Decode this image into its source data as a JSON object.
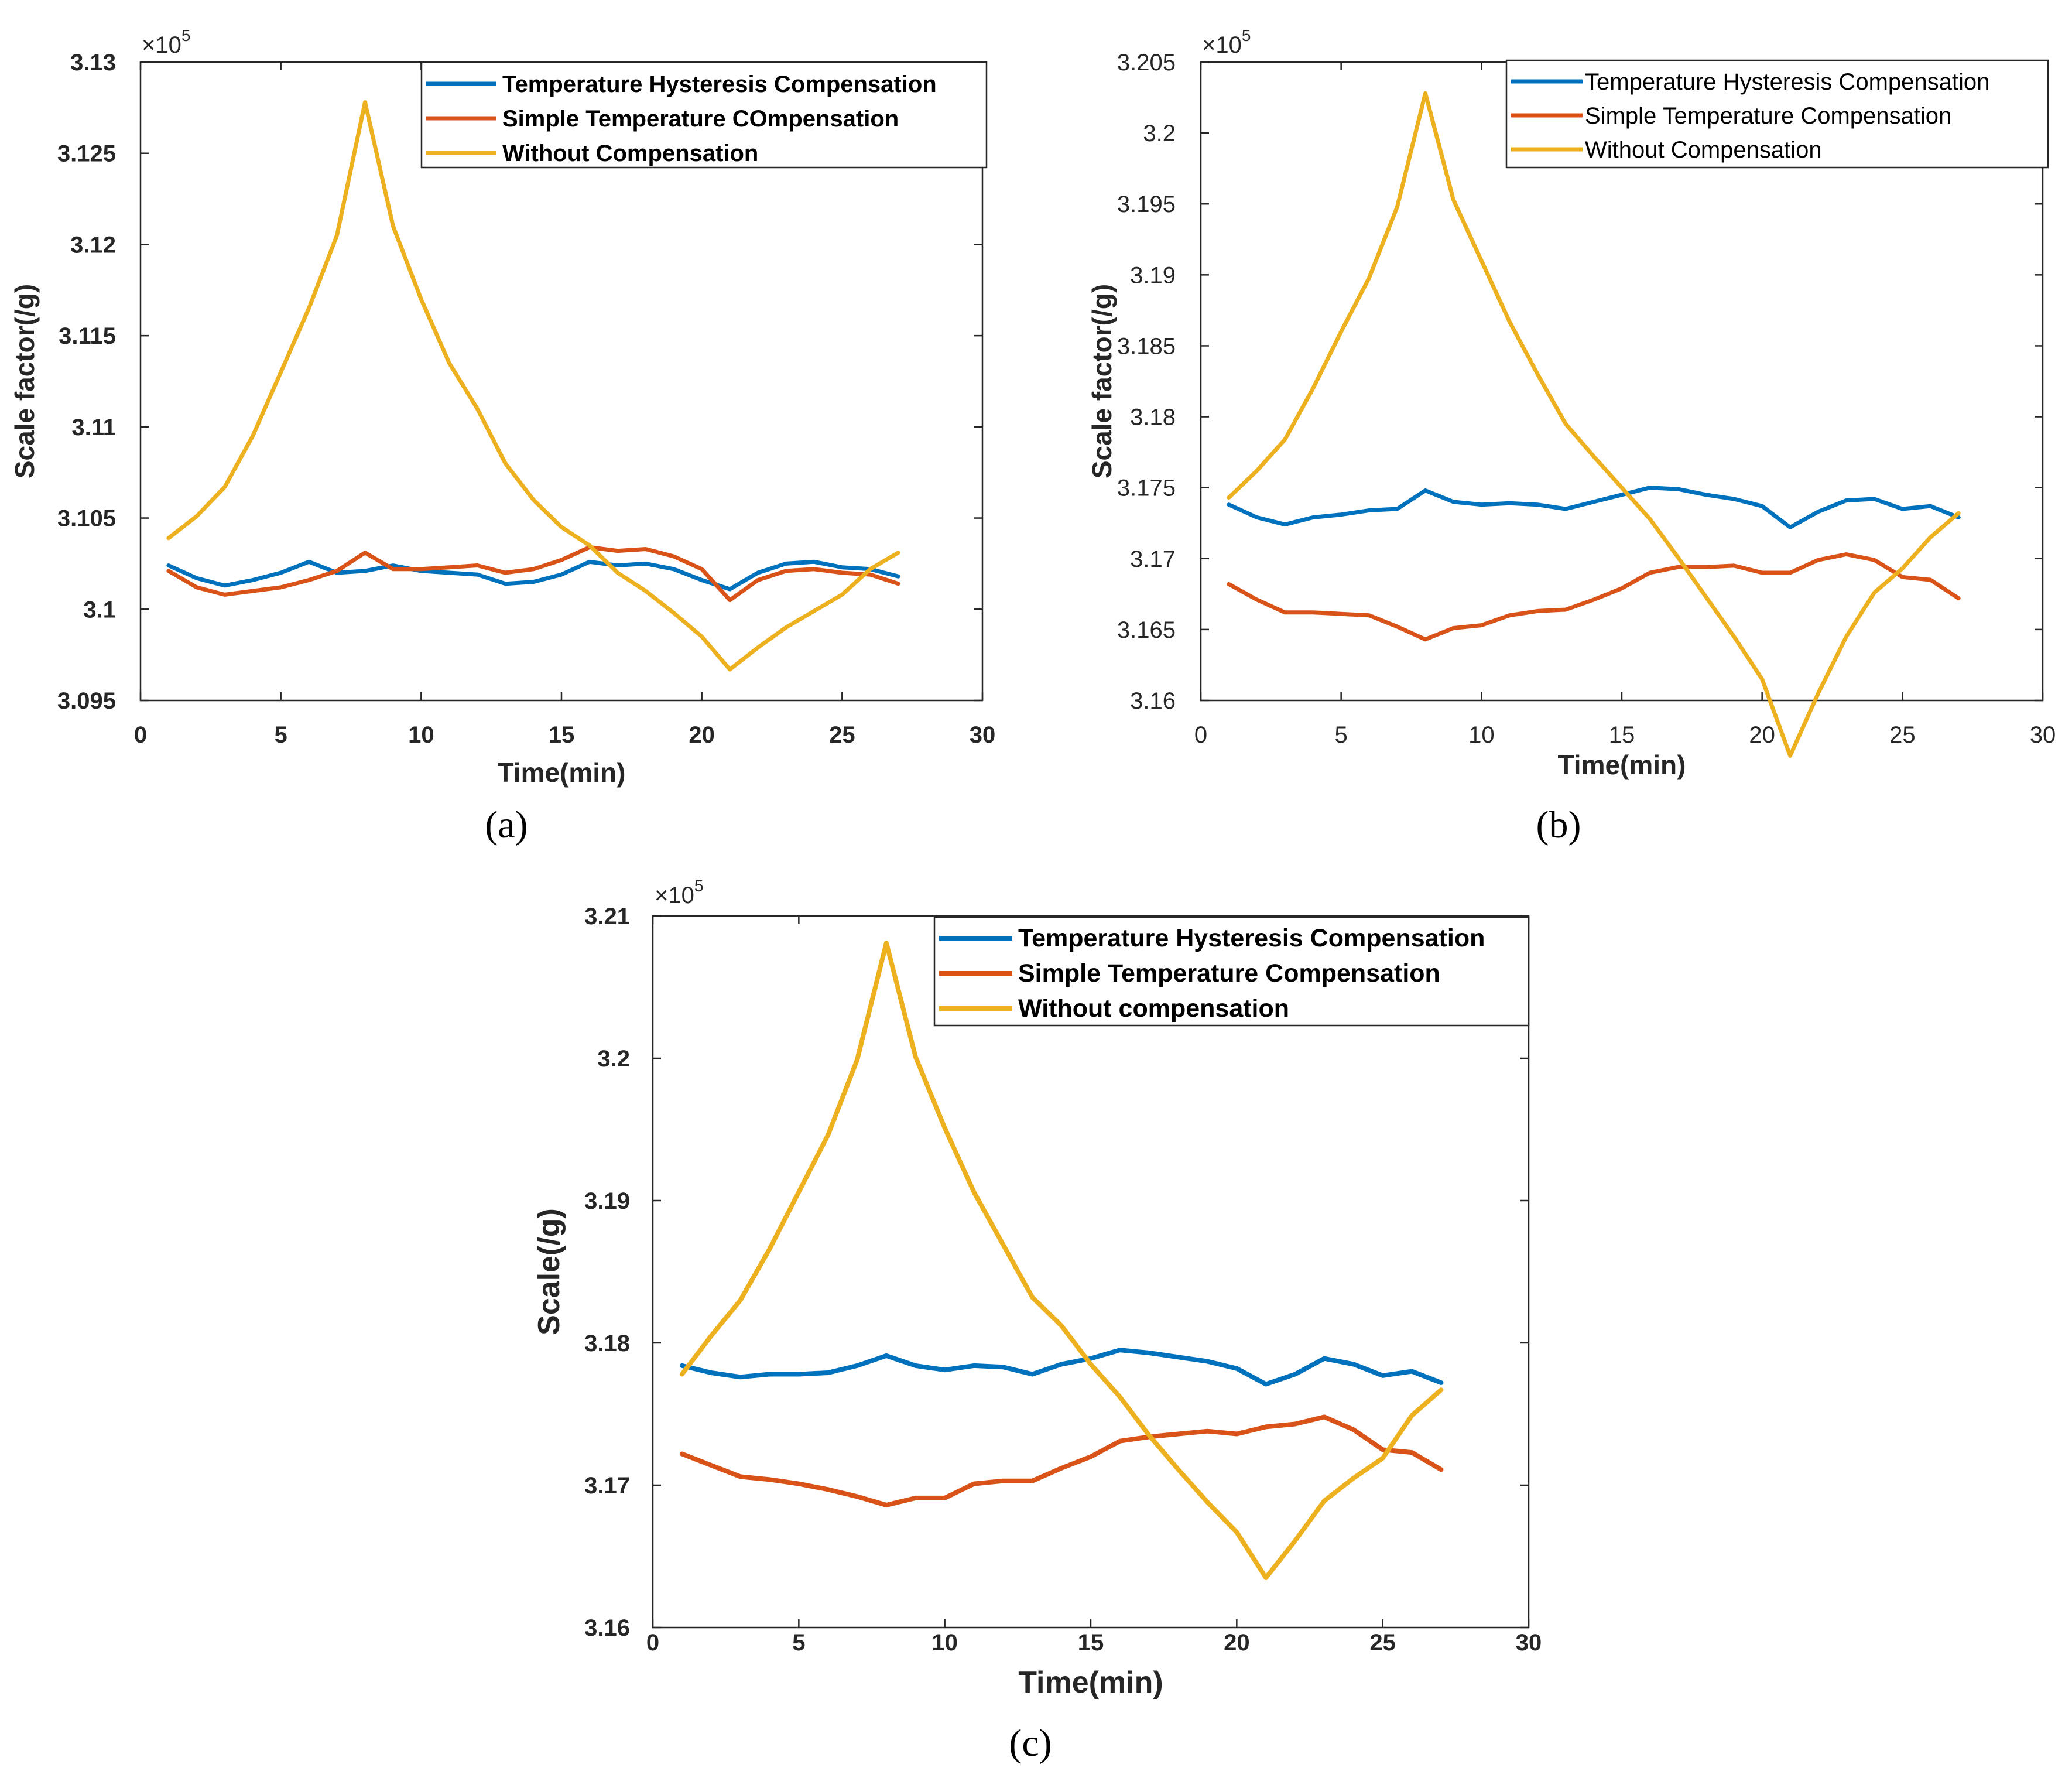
{
  "colors": {
    "hysteresis": "#0072BD",
    "simple": "#D95319",
    "without": "#EDB120",
    "axis": "#262626"
  },
  "chart_data": [
    {
      "type": "line",
      "panel_label": "(a)",
      "xlabel": "Time(min)",
      "ylabel": "Scale factor(/g)",
      "exponent_base": "×10",
      "exponent_power": "5",
      "xlim": [
        0,
        30
      ],
      "ylim": [
        3.095,
        3.13
      ],
      "x_ticks": [
        "0",
        "5",
        "10",
        "15",
        "20",
        "25",
        "30"
      ],
      "y_ticks": [
        "3.095",
        "3.1",
        "3.105",
        "3.11",
        "3.115",
        "3.12",
        "3.125",
        "3.13"
      ],
      "legend_position": "top-right",
      "x": [
        1,
        2,
        3,
        4,
        5,
        6,
        7,
        8,
        9,
        10,
        11,
        12,
        13,
        14,
        15,
        16,
        17,
        18,
        19,
        20,
        21,
        22,
        23,
        24,
        25,
        26,
        27
      ],
      "series": [
        {
          "name": "Temperature Hysteresis Compensation",
          "key": "hysteresis",
          "values": [
            3.1024,
            3.1017,
            3.1013,
            3.1016,
            3.102,
            3.1026,
            3.102,
            3.1021,
            3.1024,
            3.1021,
            3.102,
            3.1019,
            3.1014,
            3.1015,
            3.1019,
            3.1026,
            3.1024,
            3.1025,
            3.1022,
            3.1016,
            3.1011,
            3.102,
            3.1025,
            3.1026,
            3.1023,
            3.1022,
            3.1018
          ]
        },
        {
          "name": "Simple Temperature COmpensation",
          "key": "simple",
          "values": [
            3.1021,
            3.1012,
            3.1008,
            3.101,
            3.1012,
            3.1016,
            3.1021,
            3.1031,
            3.1022,
            3.1022,
            3.1023,
            3.1024,
            3.102,
            3.1022,
            3.1027,
            3.1034,
            3.1032,
            3.1033,
            3.1029,
            3.1022,
            3.1005,
            3.1016,
            3.1021,
            3.1022,
            3.102,
            3.1019,
            3.1014
          ]
        },
        {
          "name": "Without Compensation",
          "key": "without",
          "values": [
            3.1039,
            3.1051,
            3.1067,
            3.1095,
            3.113,
            3.1165,
            3.1205,
            3.1278,
            3.121,
            3.117,
            3.1135,
            3.111,
            3.108,
            3.106,
            3.1045,
            3.1035,
            3.102,
            3.101,
            3.0998,
            3.0985,
            3.0967,
            3.0979,
            3.099,
            3.0999,
            3.1008,
            3.1022,
            3.1031
          ]
        }
      ]
    },
    {
      "type": "line",
      "panel_label": "(b)",
      "xlabel": "Time(min)",
      "ylabel": "Scale factor(/g)",
      "exponent_base": "×10",
      "exponent_power": "5",
      "xlim": [
        0,
        30
      ],
      "ylim": [
        3.16,
        3.205
      ],
      "x_ticks": [
        "0",
        "5",
        "10",
        "15",
        "20",
        "25",
        "30"
      ],
      "y_ticks": [
        "3.16",
        "3.165",
        "3.17",
        "3.175",
        "3.18",
        "3.185",
        "3.19",
        "3.195",
        "3.2",
        "3.205"
      ],
      "legend_position": "top-right",
      "x": [
        1,
        2,
        3,
        4,
        5,
        6,
        7,
        8,
        9,
        10,
        11,
        12,
        13,
        14,
        15,
        16,
        17,
        18,
        19,
        20,
        21,
        22,
        23,
        24,
        25,
        26,
        27
      ],
      "series": [
        {
          "name": "Temperature Hysteresis Compensation",
          "key": "hysteresis",
          "values": [
            3.1738,
            3.1729,
            3.1724,
            3.1729,
            3.1731,
            3.1734,
            3.1735,
            3.1748,
            3.174,
            3.1738,
            3.1739,
            3.1738,
            3.1735,
            3.174,
            3.1745,
            3.175,
            3.1749,
            3.1745,
            3.1742,
            3.1737,
            3.1722,
            3.1733,
            3.1741,
            3.1742,
            3.1735,
            3.1737,
            3.1729
          ]
        },
        {
          "name": "Simple Temperature Compensation",
          "key": "simple",
          "values": [
            3.1682,
            3.1671,
            3.1662,
            3.1662,
            3.1661,
            3.166,
            3.1652,
            3.1643,
            3.1651,
            3.1653,
            3.166,
            3.1663,
            3.1664,
            3.1671,
            3.1679,
            3.169,
            3.1694,
            3.1694,
            3.1695,
            3.169,
            3.169,
            3.1699,
            3.1703,
            3.1699,
            3.1687,
            3.1685,
            3.1672
          ]
        },
        {
          "name": "Without Compensation",
          "key": "without",
          "values": [
            3.1743,
            3.1762,
            3.1784,
            3.182,
            3.186,
            3.1898,
            3.1948,
            3.2028,
            3.1953,
            3.191,
            3.1867,
            3.183,
            3.1795,
            3.1772,
            3.175,
            3.1728,
            3.1701,
            3.1673,
            3.1645,
            3.1615,
            3.1561,
            3.1605,
            3.1645,
            3.1676,
            3.1693,
            3.1715,
            3.1732
          ]
        }
      ]
    },
    {
      "type": "line",
      "panel_label": "(c)",
      "xlabel": "Time(min)",
      "ylabel": "Scale(/g)",
      "exponent_base": "×10",
      "exponent_power": "5",
      "xlim": [
        0,
        30
      ],
      "ylim": [
        3.16,
        3.21
      ],
      "x_ticks": [
        "0",
        "5",
        "10",
        "15",
        "20",
        "25",
        "30"
      ],
      "y_ticks": [
        "3.16",
        "3.17",
        "3.18",
        "3.19",
        "3.2",
        "3.21"
      ],
      "legend_position": "top-right",
      "x": [
        1,
        2,
        3,
        4,
        5,
        6,
        7,
        8,
        9,
        10,
        11,
        12,
        13,
        14,
        15,
        16,
        17,
        18,
        19,
        20,
        21,
        22,
        23,
        24,
        25,
        26,
        27
      ],
      "series": [
        {
          "name": "Temperature Hysteresis Compensation",
          "key": "hysteresis",
          "values": [
            3.1784,
            3.1779,
            3.1776,
            3.1778,
            3.1778,
            3.1779,
            3.1784,
            3.1791,
            3.1784,
            3.1781,
            3.1784,
            3.1783,
            3.1778,
            3.1785,
            3.1789,
            3.1795,
            3.1793,
            3.179,
            3.1787,
            3.1782,
            3.1771,
            3.1778,
            3.1789,
            3.1785,
            3.1777,
            3.178,
            3.1772
          ]
        },
        {
          "name": "Simple Temperature Compensation",
          "key": "simple",
          "values": [
            3.1722,
            3.1714,
            3.1706,
            3.1704,
            3.1701,
            3.1697,
            3.1692,
            3.1686,
            3.1691,
            3.1691,
            3.1701,
            3.1703,
            3.1703,
            3.1712,
            3.172,
            3.1731,
            3.1734,
            3.1736,
            3.1738,
            3.1736,
            3.1741,
            3.1743,
            3.1748,
            3.1739,
            3.1725,
            3.1723,
            3.1711
          ]
        },
        {
          "name": "Without compensation",
          "key": "without",
          "values": [
            3.1778,
            3.1805,
            3.183,
            3.1866,
            3.1906,
            3.1946,
            3.1999,
            3.2081,
            3.2001,
            3.1951,
            3.1906,
            3.1869,
            3.1832,
            3.1812,
            3.1785,
            3.1762,
            3.1735,
            3.1711,
            3.1688,
            3.1667,
            3.1635,
            3.1661,
            3.1689,
            3.1705,
            3.1719,
            3.1749,
            3.1767
          ]
        }
      ]
    }
  ]
}
